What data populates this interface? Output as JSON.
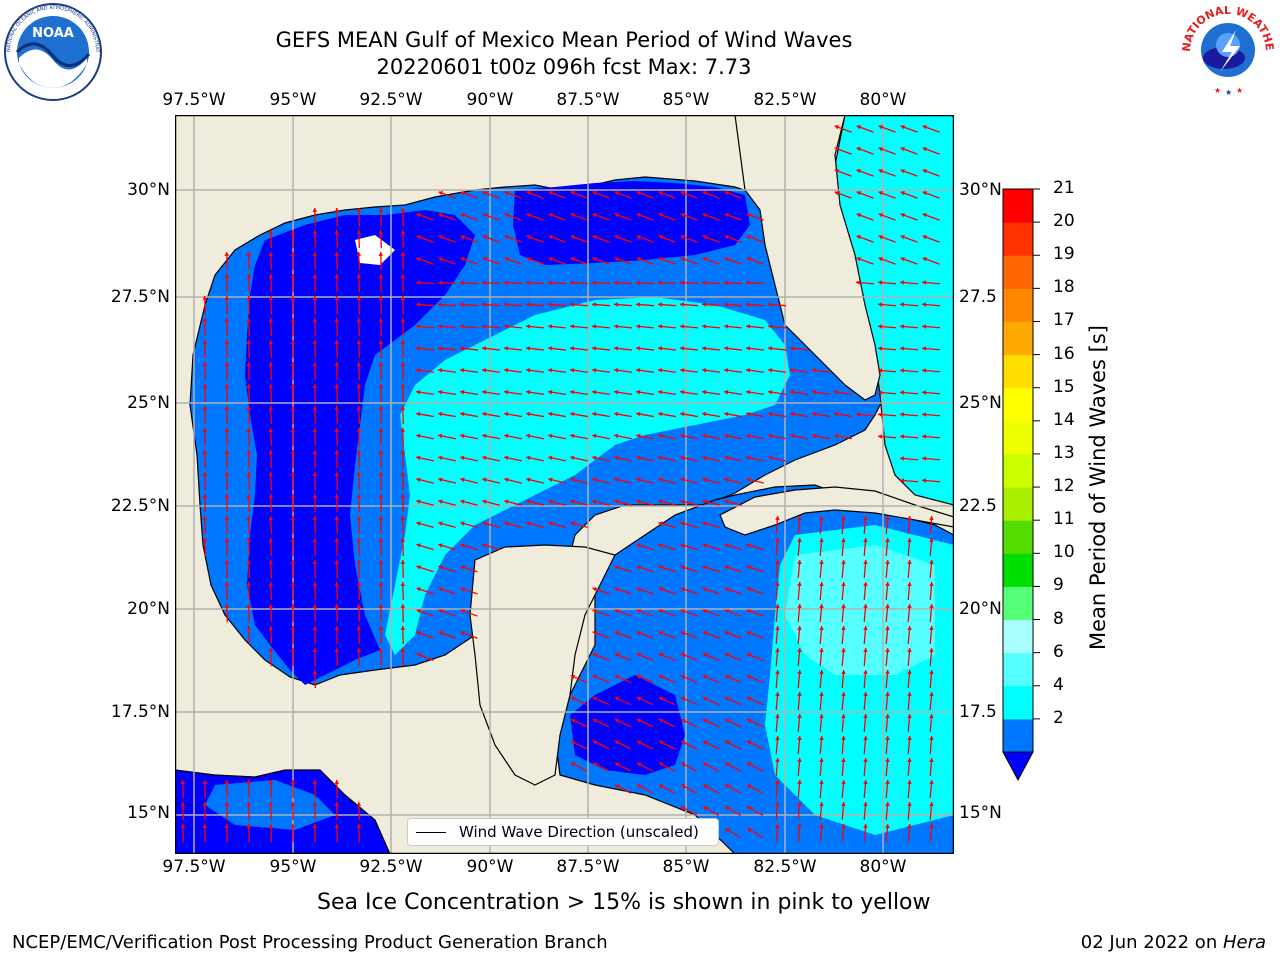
{
  "header": {
    "title_line1": "GEFS MEAN Gulf of Mexico Mean Period of Wind Waves",
    "title_line2": "20220601 t00z 096h fcst   Max: 7.73"
  },
  "logos": {
    "noaa": {
      "text": "NOAA",
      "ring_text": "NATIONAL OCEANIC AND ATMOSPHERIC ADMINISTRATION · U.S. DEPARTMENT OF COMMERCE"
    },
    "nws": {
      "ring_text": "NATIONAL WEATHER SERVICE"
    }
  },
  "map": {
    "lon_labels": [
      "97.5°W",
      "95°W",
      "92.5°W",
      "90°W",
      "87.5°W",
      "85°W",
      "82.5°W",
      "80°W"
    ],
    "lat_labels_left": [
      "30°N",
      "27.5°N",
      "25°N",
      "22.5°N",
      "20°N",
      "17.5°N",
      "15°N"
    ],
    "lat_labels_right": [
      "30°N",
      "27.5",
      "25°N",
      "22.5",
      "20°N",
      "17.5",
      "15°N"
    ],
    "extent": {
      "lon_min": -98,
      "lon_max": -78.2,
      "lat_min": 14,
      "lat_max": 31.6
    },
    "grid": true,
    "colors": {
      "land": "#efecdc",
      "coast": "#000000",
      "arrow": "#ff0000",
      "grid": "#b0b0b0"
    }
  },
  "legend": {
    "label": "Wind Wave Direction (unscaled)"
  },
  "colorbar": {
    "title": "Mean Period of Wind Waves [s]",
    "ticks": [
      "21",
      "20",
      "19",
      "18",
      "17",
      "16",
      "15",
      "14",
      "13",
      "12",
      "11",
      "10",
      "9",
      "8",
      "6",
      "4",
      "2"
    ],
    "colors": [
      "#0077ff",
      "#00ffff",
      "#55ffff",
      "#aaffff",
      "#55ff77",
      "#00dd00",
      "#55dd00",
      "#aaee00",
      "#ccff00",
      "#eeff00",
      "#ffff00",
      "#ffdd00",
      "#ffaa00",
      "#ff8800",
      "#ff6600",
      "#ff3300",
      "#ff0000"
    ],
    "extend_color": "#0000ff"
  },
  "notes": {
    "sea_ice": "Sea Ice Concentration > 15% is shown in pink to yellow",
    "branch": "NCEP/EMC/Verification Post Processing Product Generation Branch",
    "date_prefix": "02 Jun 2022 on ",
    "machine": "Hera"
  }
}
